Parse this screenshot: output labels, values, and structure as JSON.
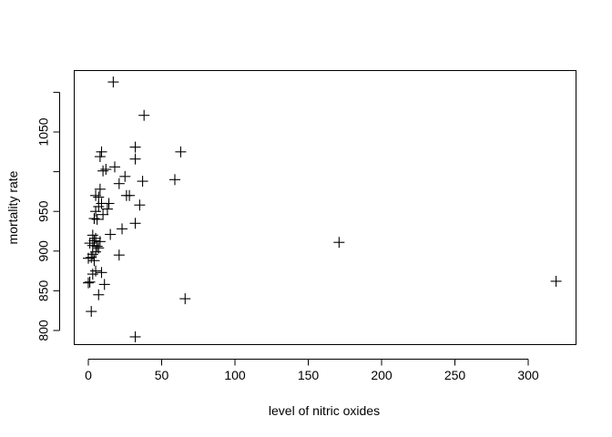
{
  "chart_data": {
    "type": "scatter",
    "title": "",
    "xlabel": "level of nitric oxides",
    "ylabel": "mortality rate",
    "xlim": [
      -10,
      330
    ],
    "ylim": [
      790,
      1115
    ],
    "xticks": [
      0,
      50,
      100,
      150,
      200,
      250,
      300
    ],
    "yticks": [
      800,
      850,
      900,
      950,
      1050
    ],
    "xtick_labels": [
      "0",
      "50",
      "100",
      "150",
      "200",
      "250",
      "300"
    ],
    "ytick_labels": [
      "800",
      "850",
      "900",
      "950",
      "1050"
    ],
    "grid": false,
    "legend": "none",
    "marker": "plus",
    "marker_color": "#000000",
    "points": [
      [
        17,
        1113
      ],
      [
        38,
        1071
      ],
      [
        63,
        1025
      ],
      [
        9,
        1025
      ],
      [
        8,
        1019
      ],
      [
        32,
        1031
      ],
      [
        32,
        1016
      ],
      [
        10,
        1001
      ],
      [
        12,
        1003
      ],
      [
        18,
        1006
      ],
      [
        25,
        994
      ],
      [
        37,
        988
      ],
      [
        59,
        990
      ],
      [
        21,
        985
      ],
      [
        8,
        978
      ],
      [
        5,
        970
      ],
      [
        7,
        968
      ],
      [
        26,
        970
      ],
      [
        28,
        970
      ],
      [
        9,
        960
      ],
      [
        14,
        960
      ],
      [
        7,
        956
      ],
      [
        35,
        958
      ],
      [
        5,
        950
      ],
      [
        13,
        953
      ],
      [
        10,
        946
      ],
      [
        4,
        941
      ],
      [
        6,
        940
      ],
      [
        32,
        935
      ],
      [
        23,
        928
      ],
      [
        15,
        921
      ],
      [
        3,
        920
      ],
      [
        5,
        916
      ],
      [
        4,
        913
      ],
      [
        8,
        912
      ],
      [
        1,
        910
      ],
      [
        3,
        907
      ],
      [
        6,
        906
      ],
      [
        7,
        904
      ],
      [
        171,
        911
      ],
      [
        5,
        899
      ],
      [
        3,
        896
      ],
      [
        21,
        895
      ],
      [
        2,
        892
      ],
      [
        0,
        891
      ],
      [
        4,
        888
      ],
      [
        5,
        875
      ],
      [
        9,
        873
      ],
      [
        3,
        871
      ],
      [
        1,
        861
      ],
      [
        0,
        860
      ],
      [
        11,
        858
      ],
      [
        319,
        862
      ],
      [
        7,
        845
      ],
      [
        66,
        840
      ],
      [
        2,
        824
      ],
      [
        32,
        792
      ]
    ]
  }
}
